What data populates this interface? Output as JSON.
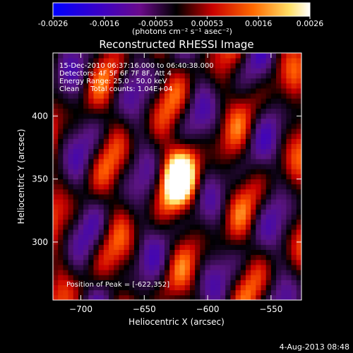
{
  "title": "Reconstructed RHESSI Image",
  "colorbar": {
    "ticks": [
      "-0.0026",
      "-0.0016",
      "-0.00053",
      "0.00053",
      "0.0016",
      "0.0026"
    ],
    "units": "(photons cm⁻² s⁻¹ asec⁻²)"
  },
  "info": {
    "time": "15-Dec-2010 06:37:16.000 to 06:40:38.000",
    "detectors": "Detectors: 4F 5F 6F 7F 8F, Att 4",
    "energy": "Energy Range: 25.0 - 50.0 keV",
    "clean": "Clean     Total counts: 1.04E+04"
  },
  "peak_label": "Position of Peak = [-622,352]",
  "footer_date": "4-Aug-2013 08:48",
  "chart_data": {
    "type": "heatmap",
    "title": "Reconstructed RHESSI Image",
    "xlabel": "Heliocentric X (arcsec)",
    "ylabel": "Heliocentric Y (arcsec)",
    "xlim": [
      -722,
      -526
    ],
    "ylim": [
      254,
      450
    ],
    "xticks": [
      -700,
      -650,
      -600,
      -550
    ],
    "yticks": [
      300,
      350,
      400
    ],
    "xtick_labels": [
      "−700",
      "−650",
      "−600",
      "−550"
    ],
    "ytick_labels": [
      "300",
      "350",
      "400"
    ],
    "value_range": [
      -0.0026,
      0.0026
    ],
    "peak": {
      "x": -622,
      "y": 352,
      "value": 0.0026
    },
    "colormap": [
      "#0000ff",
      "#4b0082",
      "#000000",
      "#cc0000",
      "#ff6600",
      "#ffff80",
      "#ffffff"
    ]
  }
}
